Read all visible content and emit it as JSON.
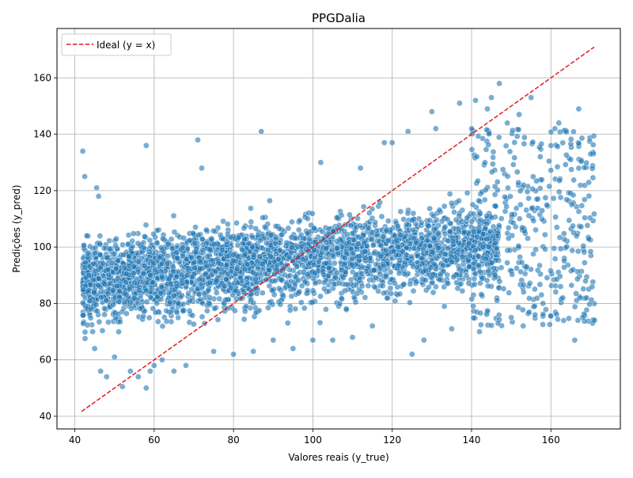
{
  "chart_data": {
    "type": "scatter",
    "title": "PPGDalia",
    "xlabel": "Valores reais (y_true)",
    "ylabel": "Predições (y_pred)",
    "xlim": [
      35.5,
      177.5
    ],
    "ylim": [
      35.5,
      177.5
    ],
    "xticks": [
      40,
      60,
      80,
      100,
      120,
      140,
      160
    ],
    "yticks": [
      40,
      60,
      80,
      100,
      120,
      140,
      160
    ],
    "grid": true,
    "legend": {
      "position": "top-left",
      "entries": [
        "Ideal (y = x)"
      ]
    },
    "colors": {
      "points": "#1f77b4",
      "point_edge": "#ffffff",
      "ideal_line": "#e41a1c",
      "grid": "#b0b0b0"
    },
    "series": [
      {
        "kind": "reference_line",
        "name": "Ideal (y = x)",
        "style": "dashed",
        "x": [
          41.7,
          170.9
        ],
        "y": [
          41.7,
          170.9
        ]
      },
      {
        "kind": "scatter",
        "opacity": 0.6,
        "points": [
          [
            42,
            134
          ],
          [
            42.5,
            125
          ],
          [
            43,
            104
          ],
          [
            43.5,
            90
          ],
          [
            44,
            78
          ],
          [
            44.5,
            70
          ],
          [
            45,
            64
          ],
          [
            45.5,
            121
          ],
          [
            46,
            118
          ],
          [
            46.5,
            56
          ],
          [
            48,
            54
          ],
          [
            50,
            61
          ],
          [
            52,
            50.5
          ],
          [
            54,
            56
          ],
          [
            56,
            54
          ],
          [
            58,
            50
          ],
          [
            58,
            136
          ],
          [
            59,
            56
          ],
          [
            60,
            58
          ],
          [
            62,
            60
          ],
          [
            65,
            56
          ],
          [
            68,
            58
          ],
          [
            71,
            138
          ],
          [
            72,
            128
          ],
          [
            75,
            63
          ],
          [
            80,
            62
          ],
          [
            85,
            63
          ],
          [
            87,
            141
          ],
          [
            90,
            67
          ],
          [
            95,
            64
          ],
          [
            100,
            67
          ],
          [
            102,
            130
          ],
          [
            105,
            67
          ],
          [
            110,
            68
          ],
          [
            112,
            128
          ],
          [
            115,
            72
          ],
          [
            118,
            137
          ],
          [
            120,
            137
          ],
          [
            124,
            141
          ],
          [
            125,
            62
          ],
          [
            128,
            67
          ],
          [
            130,
            148
          ],
          [
            131,
            142
          ],
          [
            135,
            71
          ],
          [
            137,
            151
          ],
          [
            140,
            142
          ],
          [
            141,
            152
          ],
          [
            142,
            70
          ],
          [
            144,
            149
          ],
          [
            145,
            153
          ],
          [
            147,
            158
          ],
          [
            149,
            144
          ],
          [
            150,
            75
          ],
          [
            152,
            147
          ],
          [
            153,
            72
          ],
          [
            155,
            153
          ],
          [
            156,
            76
          ],
          [
            158,
            80
          ],
          [
            160,
            136
          ],
          [
            161,
            142
          ],
          [
            162,
            144
          ],
          [
            163,
            82
          ],
          [
            165,
            131
          ],
          [
            166,
            67
          ],
          [
            167,
            149
          ],
          [
            168,
            75
          ],
          [
            169,
            82
          ],
          [
            170,
            133
          ],
          [
            170.5,
            73
          ],
          [
            171,
            74
          ]
        ]
      }
    ]
  }
}
